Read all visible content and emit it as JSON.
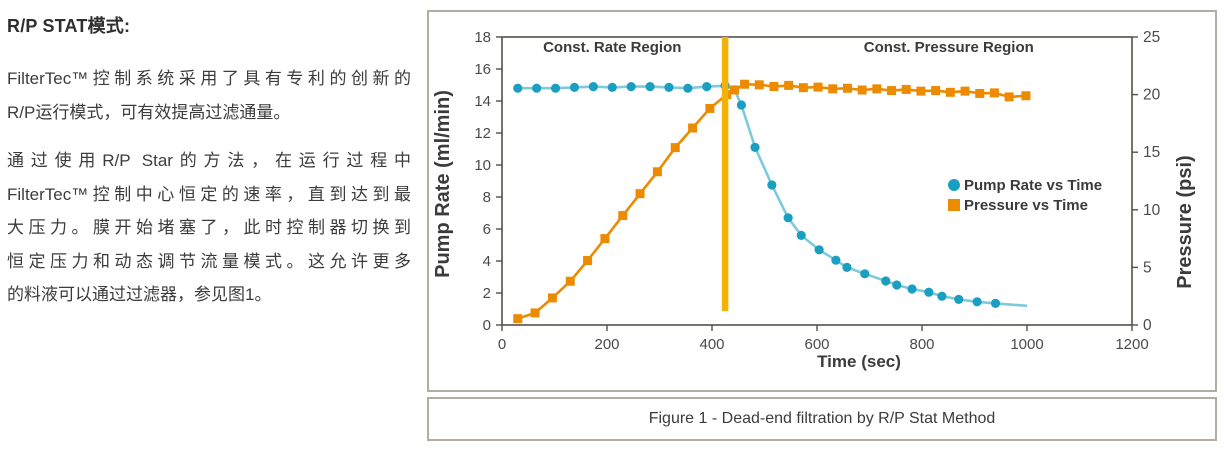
{
  "left_text": {
    "title": "R/P STAT模式:",
    "para1_lines": [
      "FilterTec™控制系统采用了具有专利的创新的",
      "R/P运行模式，可有效提高过滤通量。"
    ],
    "para2_lines": [
      "通过使用R/P Star的方法，在运行过程中",
      "FilterTec™控制中心恒定的速率，直到达到最",
      "大压力。膜开始堵塞了，此时控制器切换到",
      "恒定压力和动态调节流量模式。这允许更多",
      "的料液可以通过过滤器，参见图1。"
    ]
  },
  "figure": {
    "caption": "Figure 1 - Dead-end filtration by R/P Stat Method"
  },
  "chart_data": {
    "type": "line",
    "title": "",
    "xlabel": "Time (sec)",
    "ylabel_left": "Pump Rate (ml/min)",
    "ylabel_right": "Pressure (psi)",
    "xlim": [
      0,
      1200
    ],
    "xticks": [
      0,
      200,
      400,
      600,
      800,
      1000,
      1200
    ],
    "ylim_left": [
      0,
      18
    ],
    "yticks_left": [
      0,
      2,
      4,
      6,
      8,
      10,
      12,
      14,
      16,
      18
    ],
    "ylim_right": [
      0,
      25
    ],
    "yticks_right": [
      0,
      5,
      10,
      15,
      20,
      25
    ],
    "grid": false,
    "axis_color": "#55504b",
    "text_color": "#3b3b3b",
    "tick_label_color": "#4b4b4b",
    "region_labels": [
      {
        "text": "Const. Rate Region",
        "x": 210
      },
      {
        "text": "Const. Pressure Region",
        "x": 851
      }
    ],
    "event_line": {
      "x": 425,
      "color": "#F3B20A"
    },
    "legend": {
      "position": "middle-right"
    },
    "series": [
      {
        "name": "Pump Rate vs Time",
        "axis": "left",
        "marker": "circle",
        "marker_color": "#1B9FC0",
        "line_color": "#7DC9DE",
        "skip_last_marker": true,
        "points": [
          [
            30,
            14.8
          ],
          [
            66,
            14.8
          ],
          [
            102,
            14.8
          ],
          [
            138,
            14.85
          ],
          [
            174,
            14.9
          ],
          [
            210,
            14.85
          ],
          [
            246,
            14.9
          ],
          [
            282,
            14.9
          ],
          [
            318,
            14.85
          ],
          [
            354,
            14.8
          ],
          [
            390,
            14.9
          ],
          [
            425,
            14.95
          ],
          [
            443,
            14.7
          ],
          [
            456,
            13.75
          ],
          [
            482,
            11.1
          ],
          [
            514,
            8.75
          ],
          [
            545,
            6.7
          ],
          [
            570,
            5.6
          ],
          [
            604,
            4.7
          ],
          [
            636,
            4.05
          ],
          [
            657,
            3.6
          ],
          [
            691,
            3.2
          ],
          [
            731,
            2.75
          ],
          [
            752,
            2.5
          ],
          [
            781,
            2.25
          ],
          [
            813,
            2.05
          ],
          [
            838,
            1.8
          ],
          [
            870,
            1.6
          ],
          [
            905,
            1.45
          ],
          [
            940,
            1.35
          ],
          [
            1000,
            1.2
          ]
        ]
      },
      {
        "name": "Pressure vs Time",
        "axis": "right",
        "marker": "square",
        "marker_color": "#ED8B00",
        "line_color": "#ED8B00",
        "skip_last_marker": false,
        "points": [
          [
            30,
            0.55
          ],
          [
            63,
            1.05
          ],
          [
            96,
            2.35
          ],
          [
            130,
            3.8
          ],
          [
            163,
            5.6
          ],
          [
            196,
            7.5
          ],
          [
            230,
            9.5
          ],
          [
            263,
            11.4
          ],
          [
            296,
            13.3
          ],
          [
            330,
            15.4
          ],
          [
            363,
            17.1
          ],
          [
            396,
            18.8
          ],
          [
            428,
            20.0
          ],
          [
            443,
            20.4
          ],
          [
            462,
            20.9
          ],
          [
            490,
            20.85
          ],
          [
            518,
            20.7
          ],
          [
            546,
            20.8
          ],
          [
            574,
            20.6
          ],
          [
            602,
            20.65
          ],
          [
            630,
            20.5
          ],
          [
            658,
            20.55
          ],
          [
            686,
            20.4
          ],
          [
            714,
            20.5
          ],
          [
            742,
            20.35
          ],
          [
            770,
            20.45
          ],
          [
            798,
            20.3
          ],
          [
            826,
            20.35
          ],
          [
            854,
            20.2
          ],
          [
            882,
            20.3
          ],
          [
            910,
            20.1
          ],
          [
            938,
            20.15
          ],
          [
            966,
            19.8
          ],
          [
            998,
            19.9
          ]
        ]
      }
    ]
  }
}
